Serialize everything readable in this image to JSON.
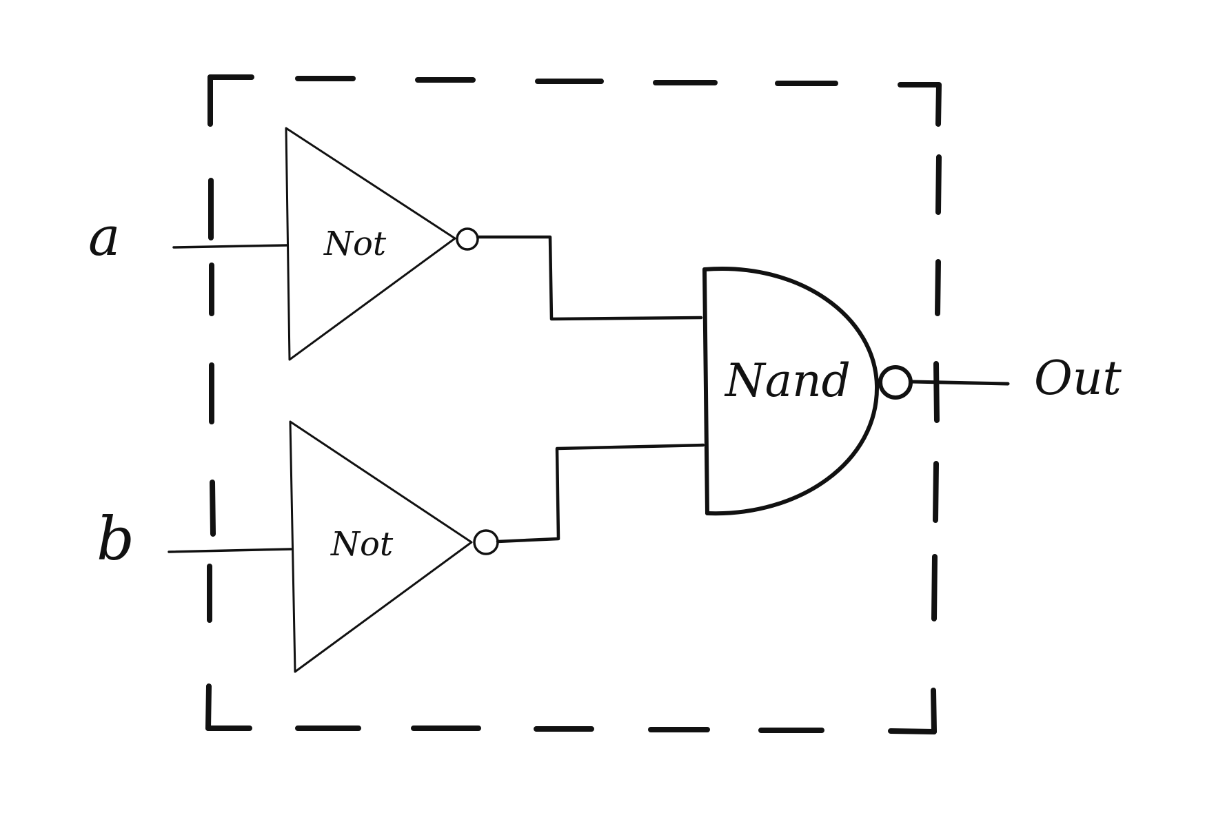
{
  "inputs": {
    "a": "a",
    "b": "b"
  },
  "gates": {
    "not_top": "Not",
    "not_bottom": "Not",
    "nand": "Nand"
  },
  "output": {
    "label": "Out"
  },
  "colors": {
    "ink": "#111111",
    "background": "#ffffff"
  }
}
